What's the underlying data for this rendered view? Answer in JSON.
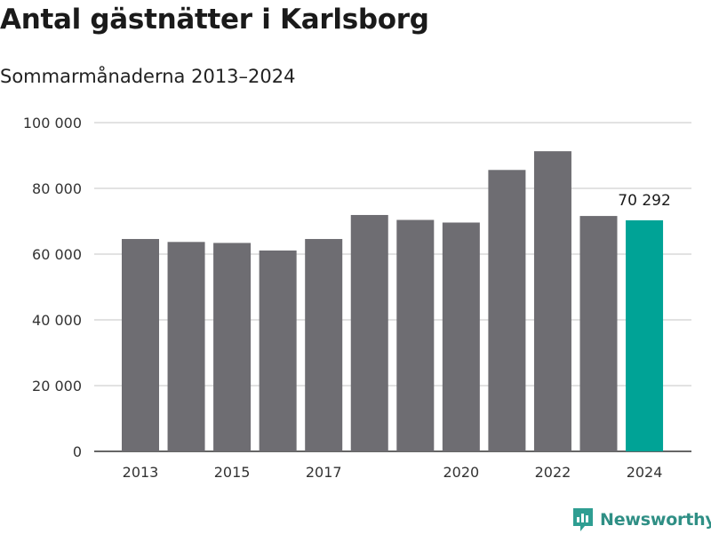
{
  "title": "Antal gästnätter i Karlsborg",
  "subtitle": "Sommarmånaderna 2013–2024",
  "brand": {
    "name": "Newsworthy",
    "color": "#2f9e92"
  },
  "colors": {
    "bar": "#6e6d72",
    "highlight": "#00a396",
    "grid": "#d9d9d9",
    "axis": "#333333"
  },
  "chart_data": {
    "type": "bar",
    "title": "Antal gästnätter i Karlsborg",
    "subtitle": "Sommarmånaderna 2013–2024",
    "xlabel": "",
    "ylabel": "",
    "categories": [
      "2013",
      "2014",
      "2015",
      "2016",
      "2017",
      "2018",
      "2019",
      "2020",
      "2021",
      "2022",
      "2023",
      "2024"
    ],
    "x_tick_labels": [
      "2013",
      "",
      "2015",
      "",
      "2017",
      "",
      "",
      "2020",
      "",
      "2022",
      "",
      "2024"
    ],
    "values": [
      64600,
      63700,
      63400,
      61100,
      64600,
      71900,
      70400,
      69600,
      85600,
      91300,
      71600,
      70292
    ],
    "highlight_index": 11,
    "data_labels": [
      {
        "index": 11,
        "text": "70 292"
      }
    ],
    "ylim": [
      0,
      100000
    ],
    "y_ticks": [
      0,
      20000,
      40000,
      60000,
      80000,
      100000
    ],
    "y_tick_labels": [
      "0",
      "20 000",
      "40 000",
      "60 000",
      "80 000",
      "100 000"
    ],
    "grid": true,
    "legend": "none"
  }
}
